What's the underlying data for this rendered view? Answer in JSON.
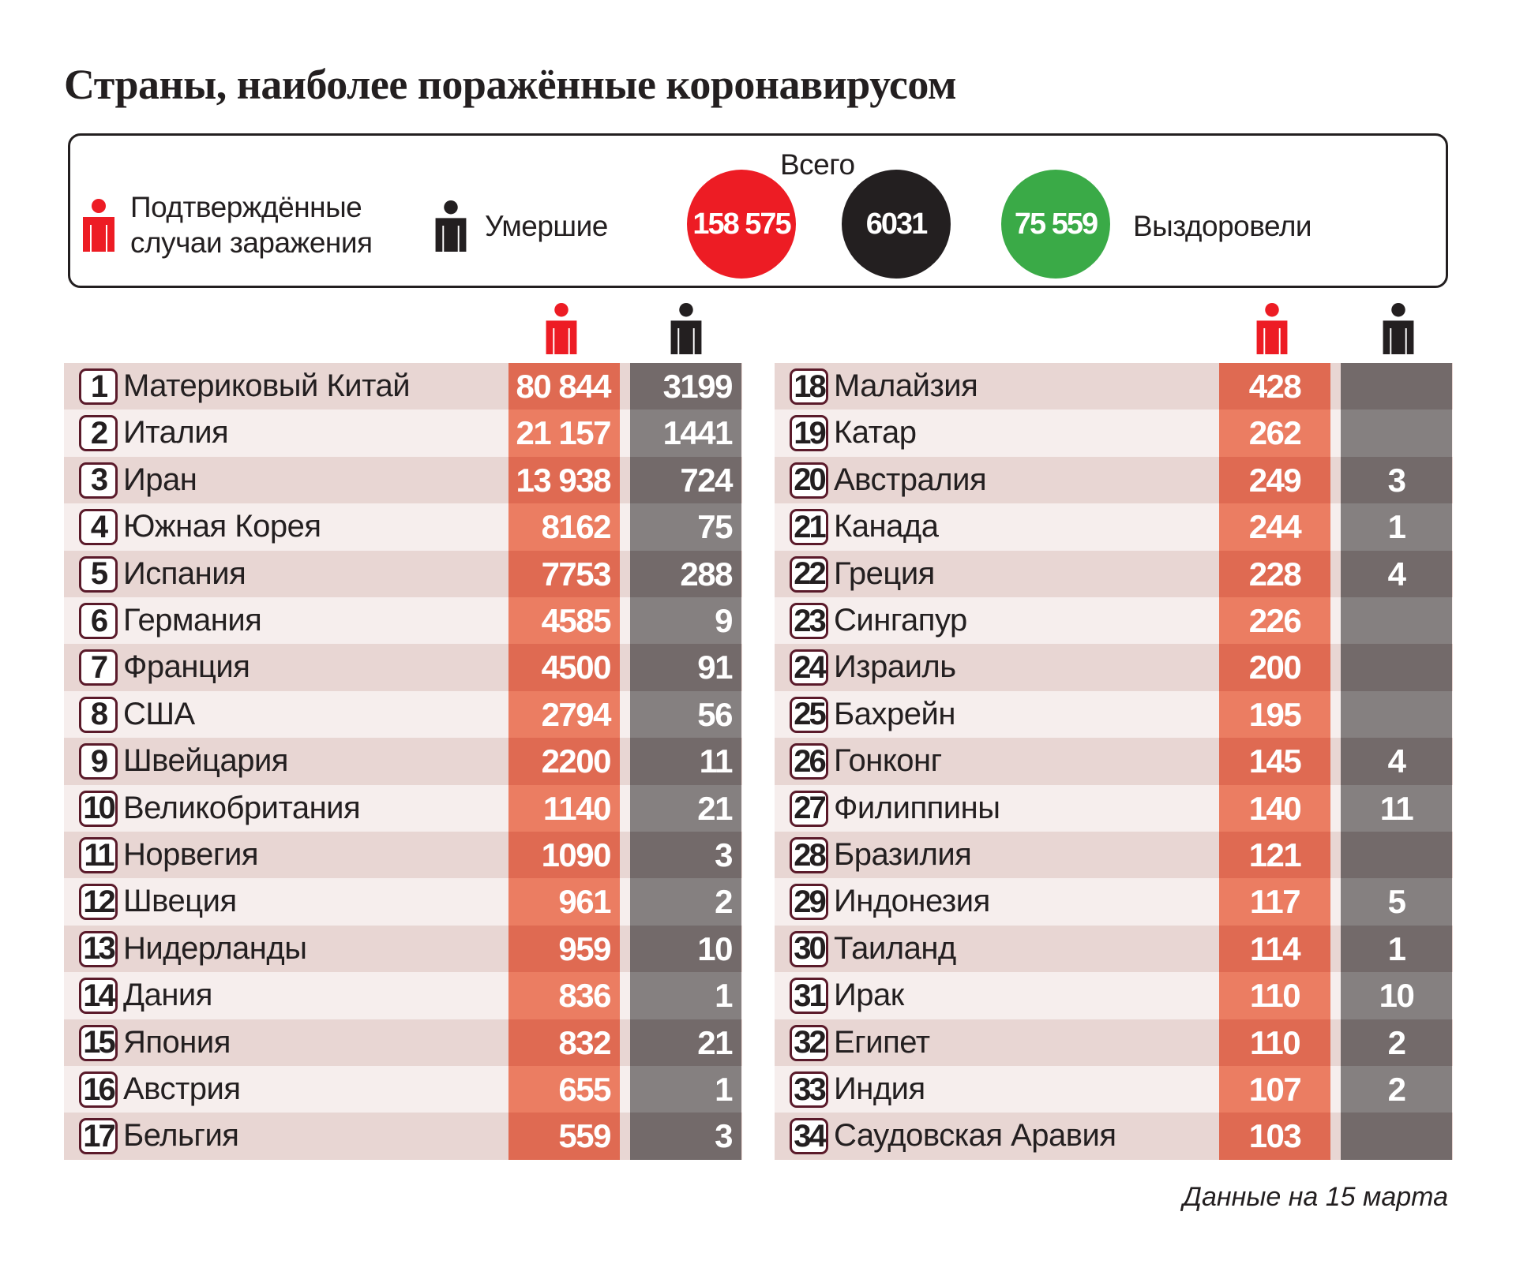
{
  "title": "Страны, наиболее поражённые коронавирусом",
  "legend": {
    "confirmed_line1": "Подтверждённые",
    "confirmed_line2": "случаи заражения",
    "deaths": "Умершие",
    "total_label": "Всего",
    "total_confirmed": "158 575",
    "total_deaths": "6031",
    "total_recovered": "75 559",
    "recovered": "Выздоровели"
  },
  "colors": {
    "red": "#ed1c24",
    "black": "#231f20",
    "green": "#3aaa47"
  },
  "left_rows": [
    {
      "rank": "1",
      "country": "Материковый Китай",
      "confirmed": "80 844",
      "deaths": "3199"
    },
    {
      "rank": "2",
      "country": "Италия",
      "confirmed": "21 157",
      "deaths": "1441"
    },
    {
      "rank": "3",
      "country": "Иран",
      "confirmed": "13 938",
      "deaths": "724"
    },
    {
      "rank": "4",
      "country": "Южная Корея",
      "confirmed": "8162",
      "deaths": "75"
    },
    {
      "rank": "5",
      "country": "Испания",
      "confirmed": "7753",
      "deaths": "288"
    },
    {
      "rank": "6",
      "country": "Германия",
      "confirmed": "4585",
      "deaths": "9"
    },
    {
      "rank": "7",
      "country": "Франция",
      "confirmed": "4500",
      "deaths": "91"
    },
    {
      "rank": "8",
      "country": "США",
      "confirmed": "2794",
      "deaths": "56"
    },
    {
      "rank": "9",
      "country": "Швейцария",
      "confirmed": "2200",
      "deaths": "11"
    },
    {
      "rank": "10",
      "country": "Великобритания",
      "confirmed": "1140",
      "deaths": "21"
    },
    {
      "rank": "11",
      "country": "Норвегия",
      "confirmed": "1090",
      "deaths": "3"
    },
    {
      "rank": "12",
      "country": "Швеция",
      "confirmed": "961",
      "deaths": "2"
    },
    {
      "rank": "13",
      "country": "Нидерланды",
      "confirmed": "959",
      "deaths": "10"
    },
    {
      "rank": "14",
      "country": "Дания",
      "confirmed": "836",
      "deaths": "1"
    },
    {
      "rank": "15",
      "country": "Япония",
      "confirmed": "832",
      "deaths": "21"
    },
    {
      "rank": "16",
      "country": "Австрия",
      "confirmed": "655",
      "deaths": "1"
    },
    {
      "rank": "17",
      "country": "Бельгия",
      "confirmed": "559",
      "deaths": "3"
    }
  ],
  "right_rows": [
    {
      "rank": "18",
      "country": "Малайзия",
      "confirmed": "428",
      "deaths": ""
    },
    {
      "rank": "19",
      "country": "Катар",
      "confirmed": "262",
      "deaths": ""
    },
    {
      "rank": "20",
      "country": "Австралия",
      "confirmed": "249",
      "deaths": "3"
    },
    {
      "rank": "21",
      "country": "Канада",
      "confirmed": "244",
      "deaths": "1"
    },
    {
      "rank": "22",
      "country": "Греция",
      "confirmed": "228",
      "deaths": "4"
    },
    {
      "rank": "23",
      "country": "Сингапур",
      "confirmed": "226",
      "deaths": ""
    },
    {
      "rank": "24",
      "country": "Израиль",
      "confirmed": "200",
      "deaths": ""
    },
    {
      "rank": "25",
      "country": "Бахрейн",
      "confirmed": "195",
      "deaths": ""
    },
    {
      "rank": "26",
      "country": "Гонконг",
      "confirmed": "145",
      "deaths": "4"
    },
    {
      "rank": "27",
      "country": "Филиппины",
      "confirmed": "140",
      "deaths": "11"
    },
    {
      "rank": "28",
      "country": "Бразилия",
      "confirmed": "121",
      "deaths": ""
    },
    {
      "rank": "29",
      "country": "Индонезия",
      "confirmed": "117",
      "deaths": "5"
    },
    {
      "rank": "30",
      "country": "Таиланд",
      "confirmed": "114",
      "deaths": "1"
    },
    {
      "rank": "31",
      "country": "Ирак",
      "confirmed": "110",
      "deaths": "10"
    },
    {
      "rank": "32",
      "country": "Египет",
      "confirmed": "110",
      "deaths": "2"
    },
    {
      "rank": "33",
      "country": "Индия",
      "confirmed": "107",
      "deaths": "2"
    },
    {
      "rank": "34",
      "country": "Саудовская Аравия",
      "confirmed": "103",
      "deaths": ""
    }
  ],
  "footer": "Данные на 15 марта"
}
